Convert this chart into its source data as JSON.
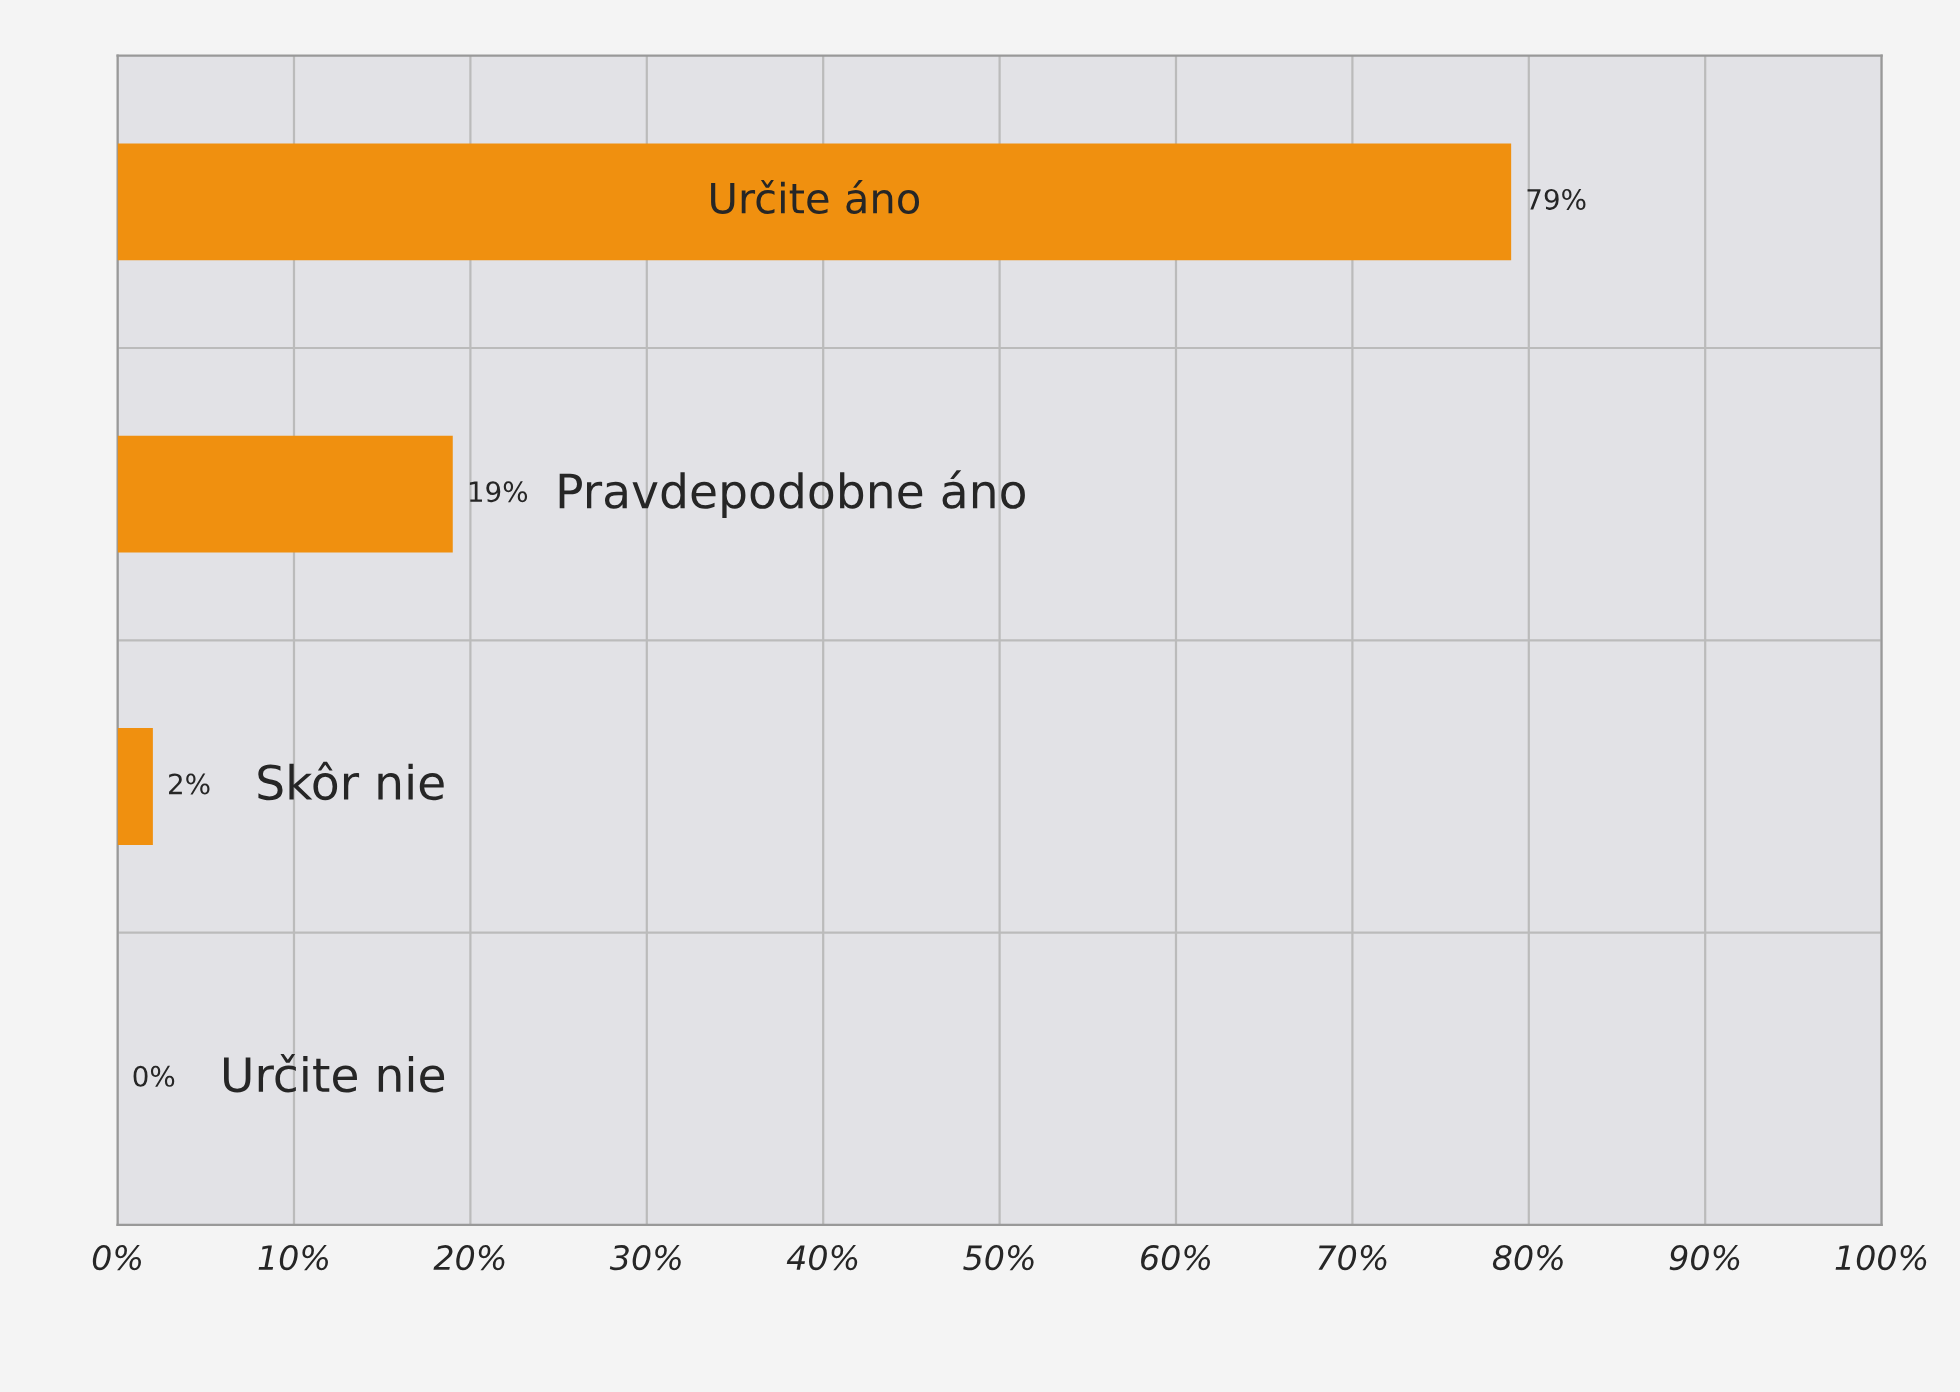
{
  "chart_data": {
    "type": "bar",
    "orientation": "horizontal",
    "categories": [
      "Určite áno",
      "Pravdepodobne áno",
      "Skôr nie",
      "Určite nie"
    ],
    "values": [
      79,
      19,
      2,
      0
    ],
    "value_labels": [
      "79%",
      "19%",
      "2%",
      "0%"
    ],
    "color": "#f0900f",
    "xlim": [
      0,
      100
    ],
    "xticks": [
      {
        "value": 0,
        "label": "0%"
      },
      {
        "value": 10,
        "label": "10%"
      },
      {
        "value": 20,
        "label": "20%"
      },
      {
        "value": 30,
        "label": "30%"
      },
      {
        "value": 40,
        "label": "40%"
      },
      {
        "value": 50,
        "label": "50%"
      },
      {
        "value": 60,
        "label": "60%"
      },
      {
        "value": 70,
        "label": "70%"
      },
      {
        "value": 80,
        "label": "80%"
      },
      {
        "value": 90,
        "label": "90%"
      },
      {
        "value": 100,
        "label": "100%"
      }
    ],
    "grid": "x"
  }
}
